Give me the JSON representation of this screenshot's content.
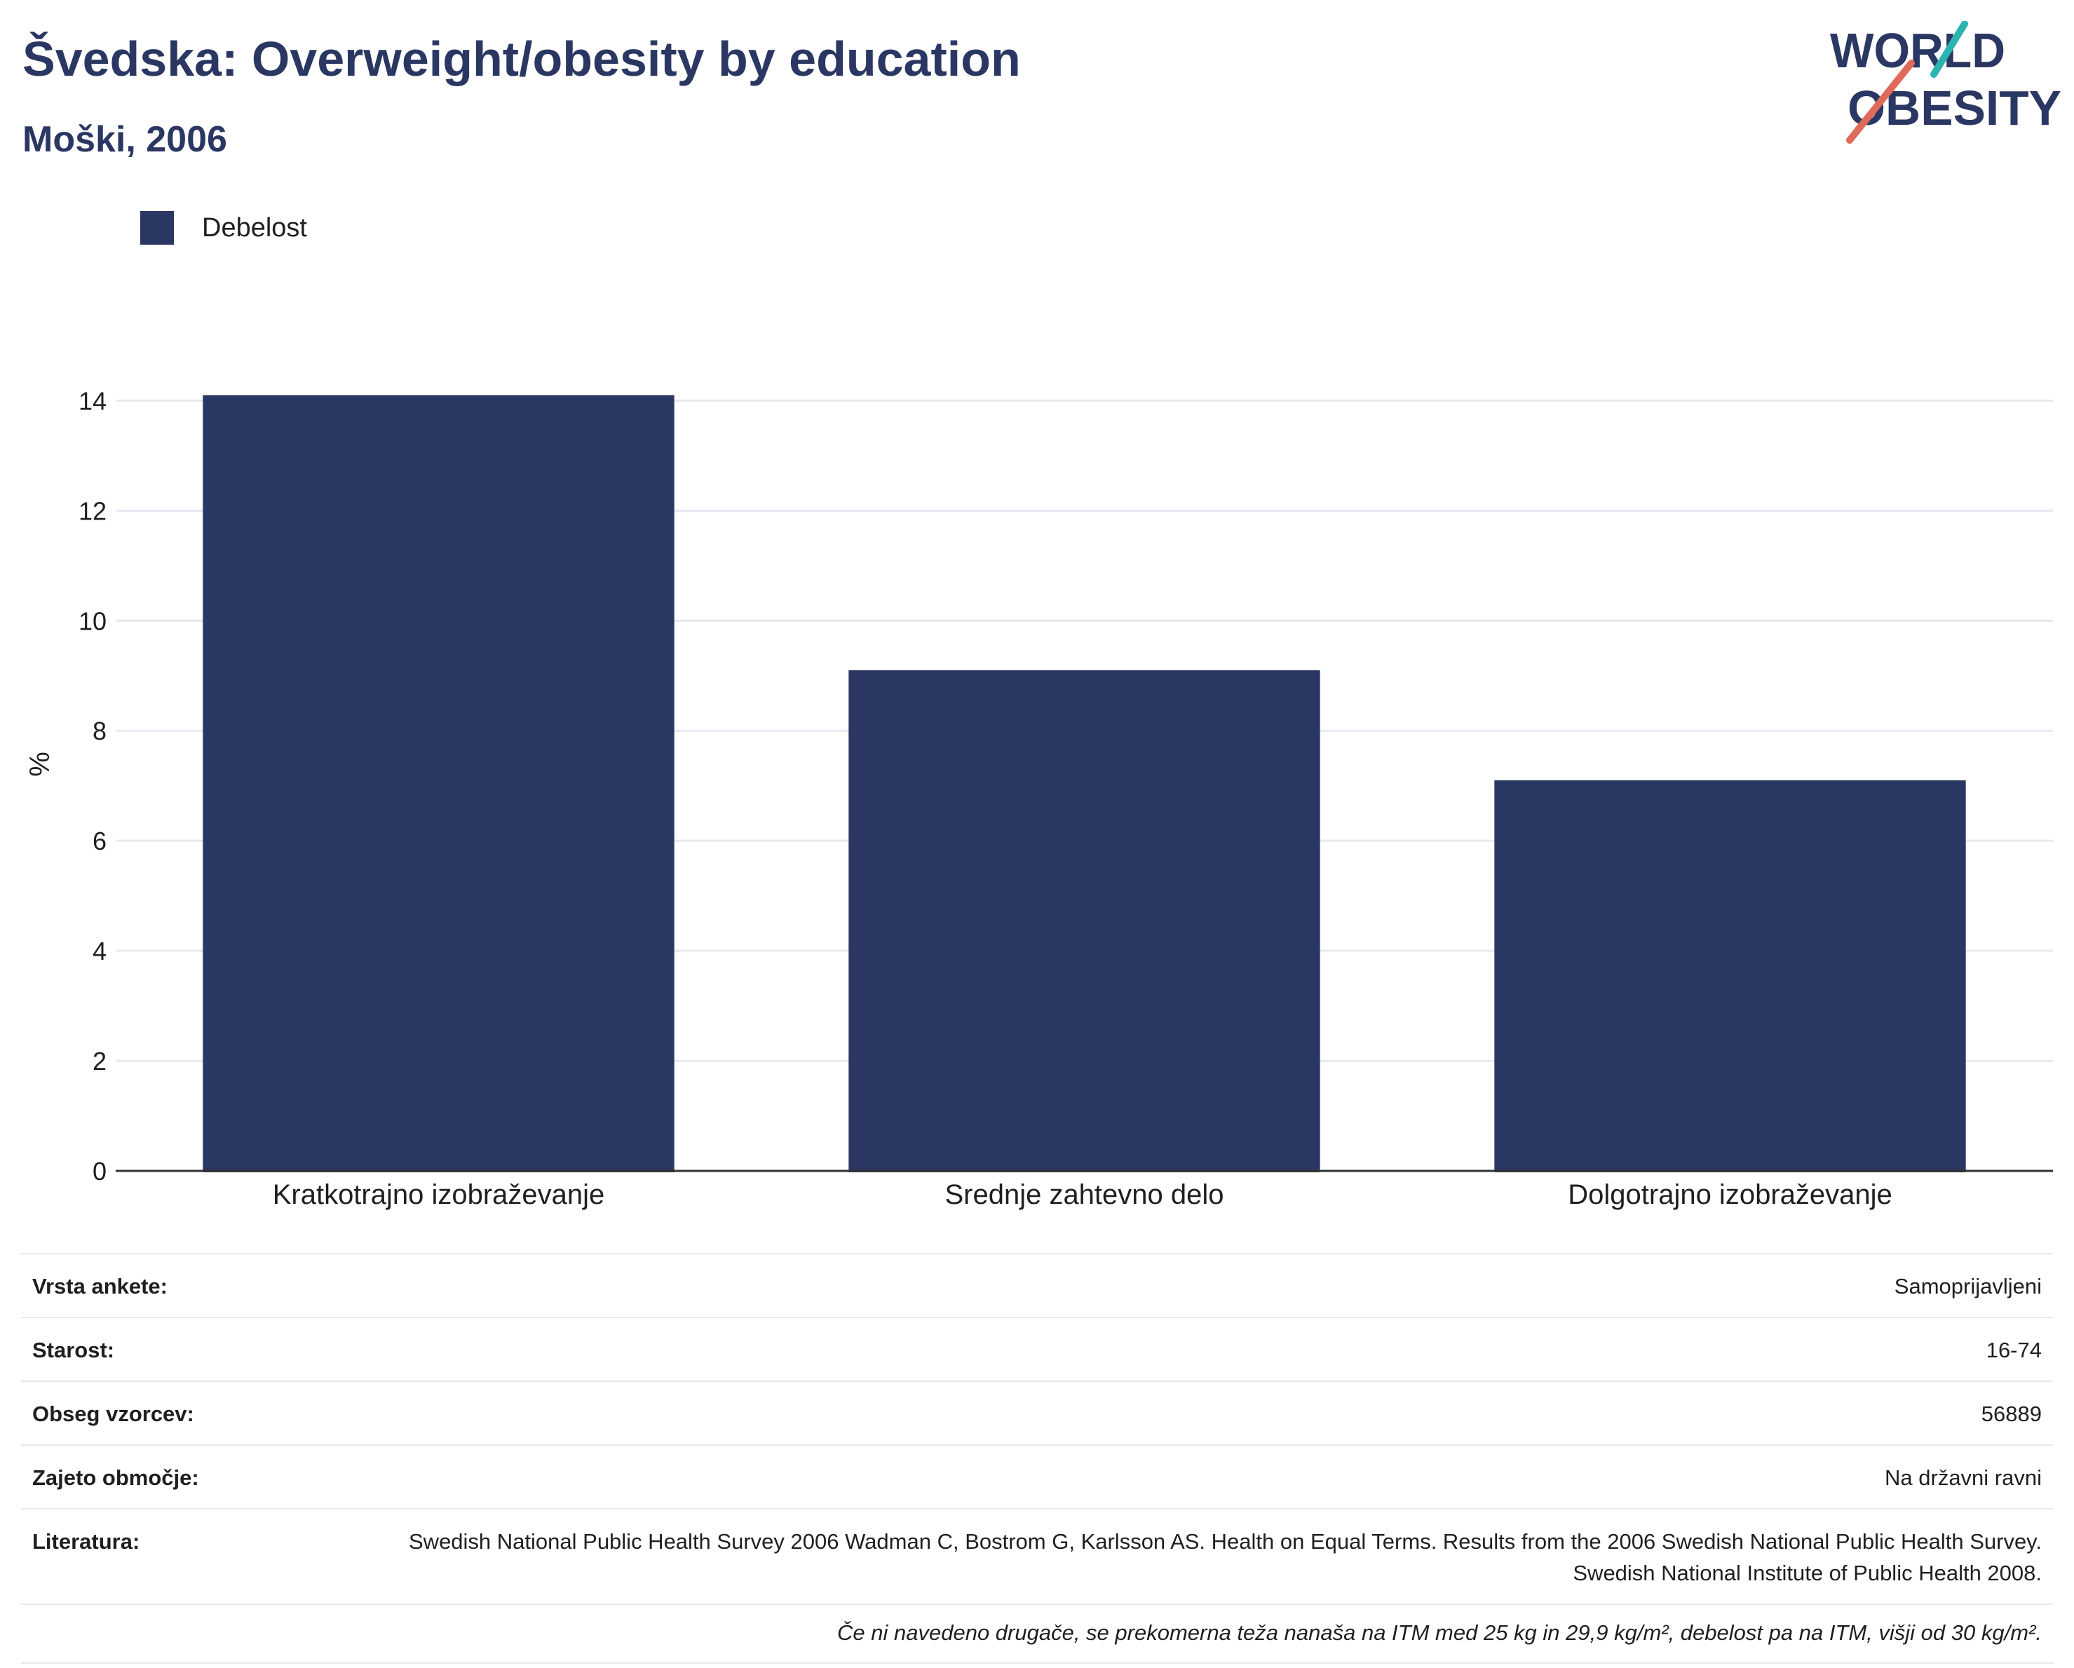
{
  "header": {
    "title": "Švedska: Overweight/obesity by education",
    "subtitle": "Moški, 2006"
  },
  "logo": {
    "line1": "WORLD",
    "line2": "OBESITY",
    "colors": {
      "text": "#2b3763",
      "accent_teal": "#2bb3b1",
      "accent_red": "#e06a5a"
    }
  },
  "legend": {
    "items": [
      {
        "label": "Debelost",
        "color": "#2b3763"
      }
    ]
  },
  "chart_data": {
    "type": "bar",
    "title": "Švedska: Overweight/obesity by education",
    "subtitle": "Moški, 2006",
    "categories": [
      "Kratkotrajno izobraževanje",
      "Srednje zahtevno delo",
      "Dolgotrajno izobraževanje"
    ],
    "series": [
      {
        "name": "Debelost",
        "values": [
          14.1,
          9.1,
          7.1
        ],
        "color": "#2b3763"
      }
    ],
    "xlabel": "",
    "ylabel": "%",
    "ylim": [
      0,
      14.4
    ],
    "yticks": [
      0,
      2,
      4,
      6,
      8,
      10,
      12,
      14
    ],
    "grid": true,
    "legend_position": "top-left"
  },
  "info": {
    "rows": [
      {
        "key": "Vrsta ankete:",
        "value": "Samoprijavljeni"
      },
      {
        "key": "Starost:",
        "value": "16-74"
      },
      {
        "key": "Obseg vzorcev:",
        "value": "56889"
      },
      {
        "key": "Zajeto območje:",
        "value": "Na državni ravni"
      },
      {
        "key": "Literatura:",
        "value": "Swedish National Public Health Survey 2006 Wadman C, Bostrom G, Karlsson AS. Health on Equal Terms. Results from the 2006 Swedish National Public Health Survey. Swedish National Institute of Public Health 2008."
      }
    ],
    "note": "Če ni navedeno drugače, se prekomerna teža nanaša na ITM med 25 kg in 29,9 kg/m², debelost pa na ITM, višji od 30 kg/m²."
  }
}
